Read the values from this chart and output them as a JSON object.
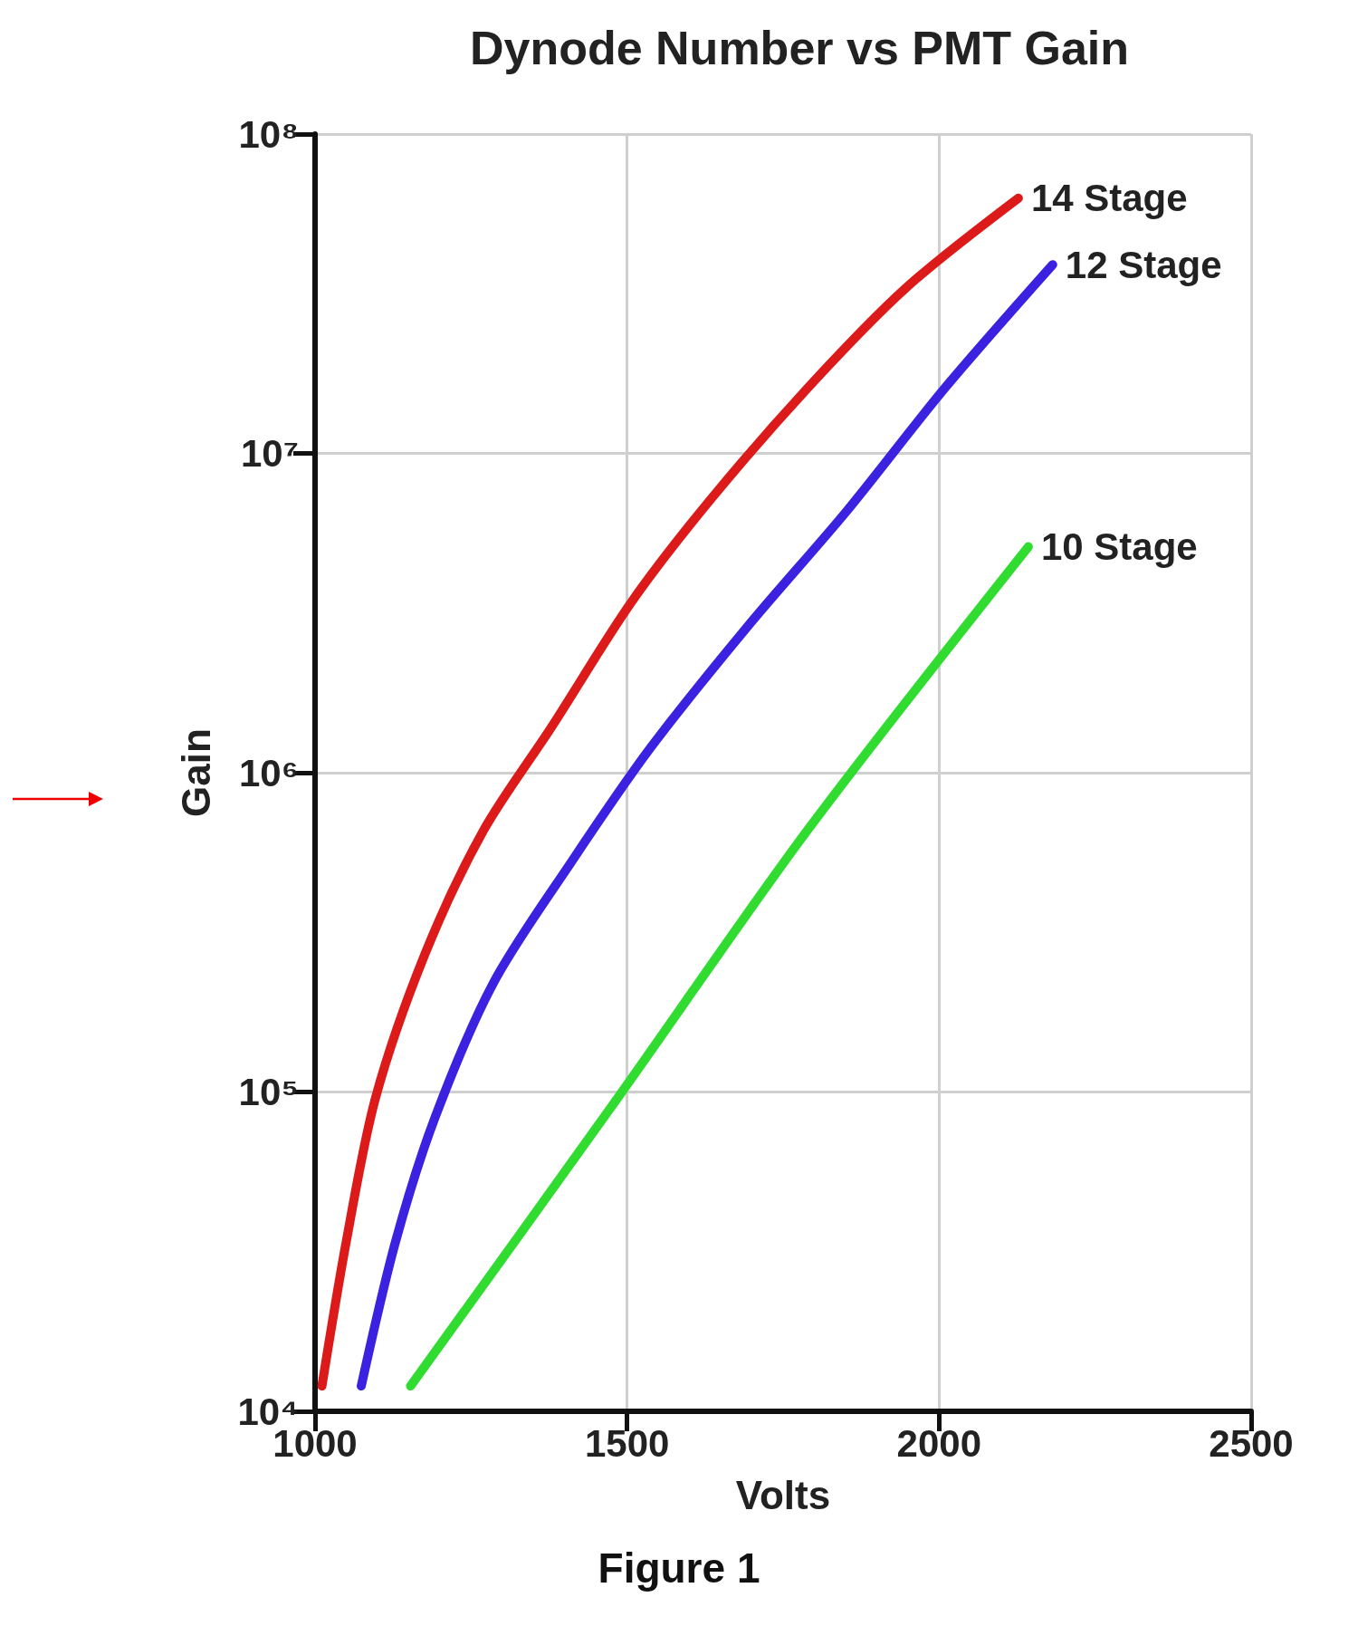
{
  "chart_data": {
    "type": "line",
    "title": "Dynode Number vs PMT Gain",
    "xlabel": "Volts",
    "ylabel": "Gain",
    "annotations": [
      "Figure 1"
    ],
    "xlim": [
      1000,
      2500
    ],
    "xticks": [
      1000,
      1500,
      2000,
      2500
    ],
    "ylim": [
      10000,
      100000000
    ],
    "yticks": [
      {
        "value": 10000,
        "label": "10⁴"
      },
      {
        "value": 100000,
        "label": "10⁵"
      },
      {
        "value": 1000000,
        "label": "10⁶"
      },
      {
        "value": 10000000,
        "label": "10⁷"
      },
      {
        "value": 100000000,
        "label": "10⁸"
      }
    ],
    "log": "y",
    "grid": true,
    "line_style": "solid",
    "series": [
      {
        "name": "14 Stage",
        "color": "#dd1a1a",
        "x": [
          1011,
          1050,
          1097,
          1176,
          1270,
          1380,
          1506,
          1632,
          1789,
          1947,
          2127
        ],
        "values": [
          12000,
          34000,
          96000,
          270000,
          660000,
          1400000,
          3400000,
          7100000,
          16000000,
          33000000,
          63000000
        ]
      },
      {
        "name": "12 Stage",
        "color": "#3a22e0",
        "x": [
          1074,
          1129,
          1192,
          1286,
          1412,
          1538,
          1695,
          1852,
          2009,
          2182
        ],
        "values": [
          12000,
          34000,
          83000,
          220000,
          530000,
          1200000,
          2900000,
          6600000,
          16000000,
          39000000
        ]
      },
      {
        "name": "10 Stage",
        "color": "#2fdc2f",
        "x": [
          1153,
          1475,
          1789,
          2143
        ],
        "values": [
          12000,
          90000,
          660000,
          5100000
        ]
      }
    ]
  }
}
